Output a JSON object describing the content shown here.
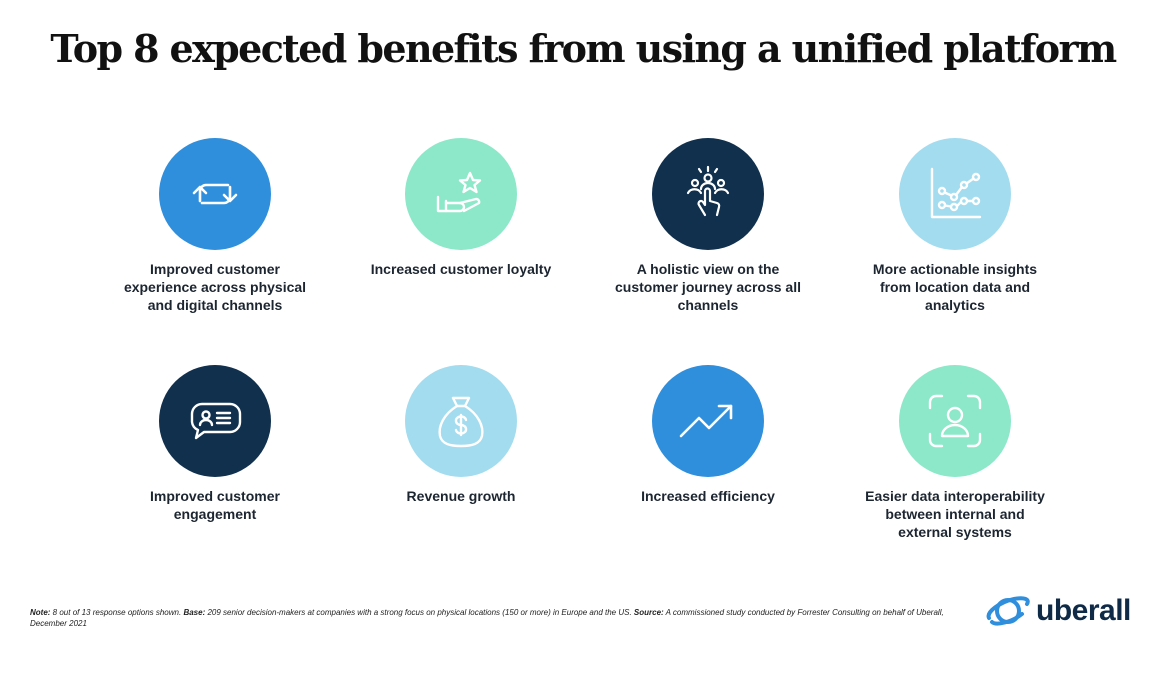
{
  "title": "Top 8 expected benefits from using a unified platform",
  "colors": {
    "blue": "#2f8fdc",
    "mint": "#8ce8c8",
    "navy": "#10304d",
    "light_blue": "#a3dcef"
  },
  "benefits": [
    {
      "label": "Improved customer experience across physical and digital channels",
      "icon": "sync-arrows-icon",
      "color": "blue"
    },
    {
      "label": "Increased customer loyalty",
      "icon": "hand-star-icon",
      "color": "mint"
    },
    {
      "label": "A holistic view on the customer journey across all channels",
      "icon": "people-pointer-icon",
      "color": "navy"
    },
    {
      "label": "More actionable insights from location data and analytics",
      "icon": "line-chart-icon",
      "color": "light_blue"
    },
    {
      "label": "Improved customer engagement",
      "icon": "chat-profile-icon",
      "color": "navy"
    },
    {
      "label": "Revenue growth",
      "icon": "money-bag-icon",
      "color": "light_blue"
    },
    {
      "label": "Increased efficiency",
      "icon": "trend-up-icon",
      "color": "blue"
    },
    {
      "label": "Easier data interoperability between internal and external systems",
      "icon": "face-scan-icon",
      "color": "mint"
    }
  ],
  "footnote": {
    "note_label": "Note:",
    "note_text": " 8 out of 13 response options shown. ",
    "base_label": "Base:",
    "base_text": " 209 senior decision-makers at companies with a strong focus on physical locations (150 or more) in Europe and the US. ",
    "source_label": "Source:",
    "source_text": " A commissioned study conducted by Forrester Consulting on behalf of Uberall, December 2021"
  },
  "logo": {
    "text": "uberall",
    "icon": "planet-icon"
  }
}
